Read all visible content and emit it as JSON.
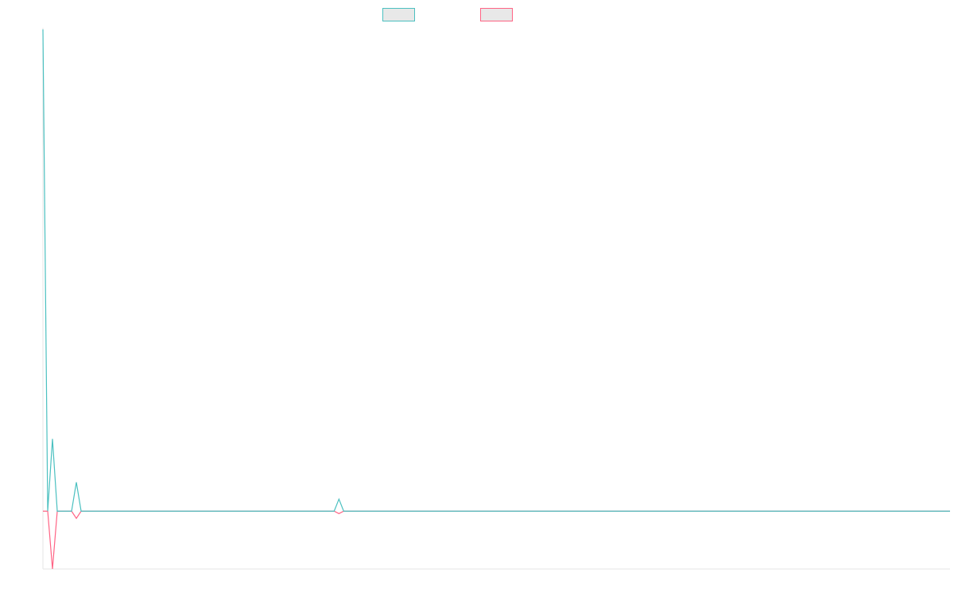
{
  "chart_data": {
    "type": "line",
    "title": "",
    "xlabel": "",
    "ylabel": "",
    "grid": false,
    "legend_placement": "top-center",
    "x_axis_visible": true,
    "y_axis_visible": true,
    "tick_labels_visible": false,
    "x": [
      0,
      1,
      2,
      3,
      4,
      5,
      6,
      7,
      8,
      9,
      10,
      11,
      12,
      13,
      14,
      15,
      16,
      17,
      18,
      19,
      20,
      21,
      22,
      23,
      24,
      25,
      26,
      27,
      28,
      29,
      30,
      31,
      32,
      33,
      34,
      35,
      36,
      37,
      38,
      39,
      40,
      41,
      42,
      43,
      44,
      45,
      46,
      47,
      48,
      49,
      50,
      51,
      52,
      53,
      54,
      55,
      56,
      57,
      58,
      59,
      60,
      61,
      62,
      63,
      64,
      65,
      66,
      67,
      68,
      69,
      70,
      71,
      72,
      73,
      74,
      75,
      76,
      77,
      78,
      79,
      80,
      81,
      82,
      83,
      84,
      85,
      86,
      87,
      88,
      89,
      90,
      91,
      92,
      93,
      94,
      95,
      96,
      97,
      98,
      99,
      100,
      101,
      102,
      103,
      104,
      105,
      106,
      107,
      108,
      109,
      110,
      111,
      112,
      113,
      114,
      115,
      116,
      117,
      118,
      119,
      120,
      121,
      122,
      123,
      124,
      125,
      126,
      127,
      128,
      129,
      130,
      131,
      132,
      133,
      134,
      135,
      136,
      137,
      138,
      139,
      140,
      141,
      142,
      143,
      144,
      145,
      146,
      147,
      148,
      149,
      150,
      151,
      152,
      153,
      154,
      155,
      156,
      157,
      158,
      159,
      160,
      161,
      162,
      163,
      164,
      165,
      166,
      167,
      168,
      169,
      170,
      171,
      172,
      173,
      174,
      175,
      176,
      177,
      178,
      179,
      180,
      181,
      182,
      183,
      184,
      185,
      186,
      187,
      188,
      189,
      190
    ],
    "series": [
      {
        "name": "",
        "color": "#4bc0c0",
        "values": [
          1000,
          0,
          150,
          0,
          0,
          0,
          0,
          60,
          0,
          0,
          0,
          0,
          0,
          0,
          0,
          0,
          0,
          0,
          0,
          0,
          0,
          0,
          0,
          0,
          0,
          0,
          0,
          0,
          0,
          0,
          0,
          0,
          0,
          0,
          0,
          0,
          0,
          0,
          0,
          0,
          0,
          0,
          0,
          0,
          0,
          0,
          0,
          0,
          0,
          0,
          0,
          0,
          0,
          0,
          0,
          0,
          0,
          0,
          0,
          0,
          0,
          0,
          25,
          0,
          0,
          0,
          0,
          0,
          0,
          0,
          0,
          0,
          0,
          0,
          0,
          0,
          0,
          0,
          0,
          0,
          0,
          0,
          0,
          0,
          0,
          0,
          0,
          0,
          0,
          0,
          0,
          0,
          0,
          0,
          0,
          0,
          0,
          0,
          0,
          0,
          0,
          0,
          0,
          0,
          0,
          0,
          0,
          0,
          0,
          0,
          0,
          0,
          0,
          0,
          0,
          0,
          0,
          0,
          0,
          0,
          0,
          0,
          0,
          0,
          0,
          0,
          0,
          0,
          0,
          0,
          0,
          0,
          0,
          0,
          0,
          0,
          0,
          0,
          0,
          0,
          0,
          0,
          0,
          0,
          0,
          0,
          0,
          0,
          0,
          0,
          0,
          0,
          0,
          0,
          0,
          0,
          0,
          0,
          0,
          0,
          0,
          0,
          0,
          0,
          0,
          0,
          0,
          0,
          0,
          0,
          0,
          0,
          0,
          0,
          0,
          0,
          0,
          0,
          0,
          0,
          0,
          0,
          0,
          0,
          0,
          0,
          0,
          0,
          0,
          0,
          0
        ]
      },
      {
        "name": "",
        "color": "#ff6384",
        "values": [
          0,
          0,
          -120,
          0,
          0,
          0,
          0,
          -15,
          0,
          0,
          0,
          0,
          0,
          0,
          0,
          0,
          0,
          0,
          0,
          0,
          0,
          0,
          0,
          0,
          0,
          0,
          0,
          0,
          0,
          0,
          0,
          0,
          0,
          0,
          0,
          0,
          0,
          0,
          0,
          0,
          0,
          0,
          0,
          0,
          0,
          0,
          0,
          0,
          0,
          0,
          0,
          0,
          0,
          0,
          0,
          0,
          0,
          0,
          0,
          0,
          0,
          0,
          -5,
          0,
          0,
          0,
          0,
          0,
          0,
          0,
          0,
          0,
          0,
          0,
          0,
          0,
          0,
          0,
          0,
          0,
          0,
          0,
          0,
          0,
          0,
          0,
          0,
          0,
          0,
          0,
          0,
          0,
          0,
          0,
          0,
          0,
          0,
          0,
          0,
          0,
          0,
          0,
          0,
          0,
          0,
          0,
          0,
          0,
          0,
          0,
          0,
          0,
          0,
          0,
          0,
          0,
          0,
          0,
          0,
          0,
          0,
          0,
          0,
          0,
          0,
          0,
          0,
          0,
          0,
          0,
          0,
          0,
          0,
          0,
          0,
          0,
          0,
          0,
          0,
          0,
          0,
          0,
          0,
          0,
          0,
          0,
          0,
          0,
          0,
          0,
          0,
          0,
          0,
          0,
          0,
          0,
          0,
          0,
          0,
          0,
          0,
          0,
          0,
          0,
          0,
          0,
          0,
          0,
          0,
          0,
          0,
          0,
          0,
          0,
          0,
          0,
          0,
          0,
          0,
          0,
          0,
          0,
          0,
          0,
          0,
          0,
          0,
          0,
          0,
          0,
          0
        ]
      }
    ],
    "xlim": [
      0,
      190
    ],
    "ylim": [
      -120,
      1000
    ]
  }
}
